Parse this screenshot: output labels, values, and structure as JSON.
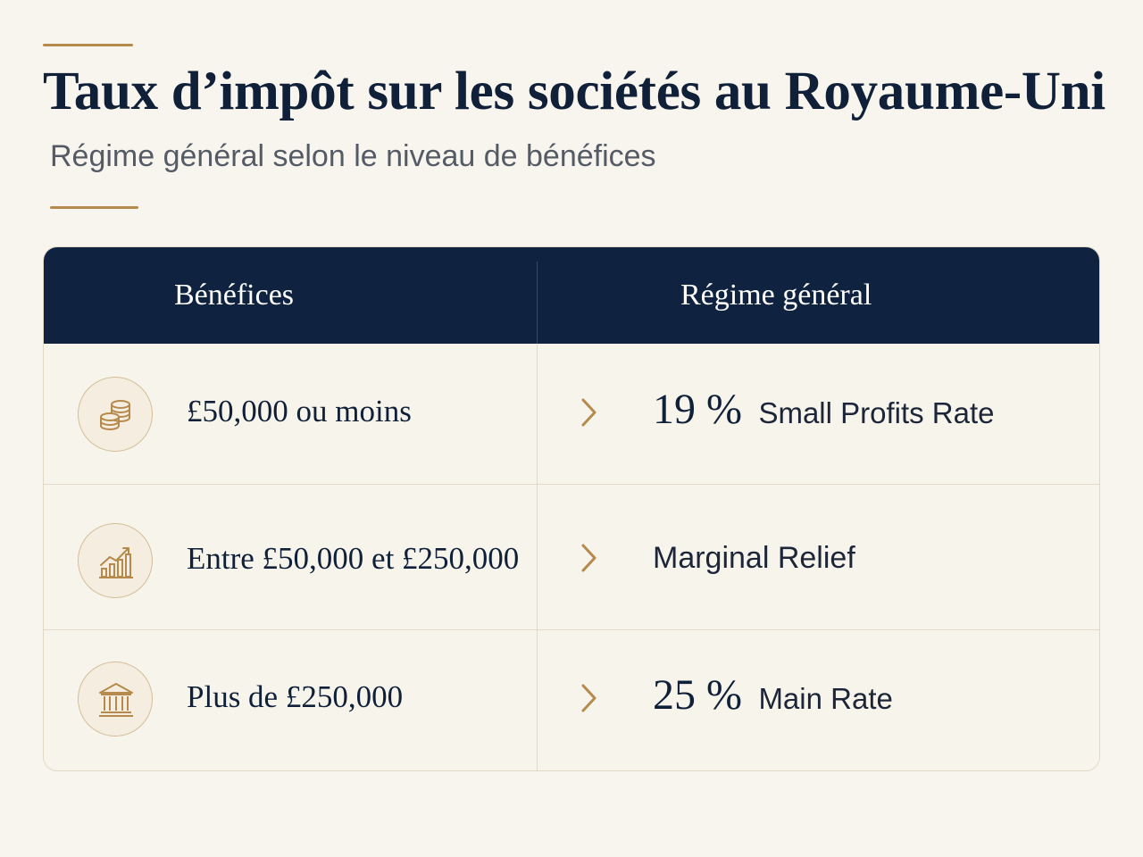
{
  "header": {
    "title": "Taux d’impôt sur les sociétés au Royaume-Uni",
    "subtitle": "Régime général selon le niveau de bénéfices"
  },
  "table": {
    "columns": [
      "Bénéfices",
      "Régime général"
    ],
    "rows": [
      {
        "icon": "coins-stack-icon",
        "profits": "£50,000 ou moins",
        "rate": "19 %",
        "rate_name": "Small Profits Rate"
      },
      {
        "icon": "growth-chart-icon",
        "profits": "Entre £50,000 et £250,000",
        "rate": "",
        "rate_name": "Marginal Relief"
      },
      {
        "icon": "bank-building-icon",
        "profits": "Plus de £250,000",
        "rate": "25 %",
        "rate_name": "Main Rate"
      }
    ]
  },
  "colors": {
    "navy": "#0f2340",
    "gold": "#b58a4c",
    "background": "#f8f5ee"
  }
}
